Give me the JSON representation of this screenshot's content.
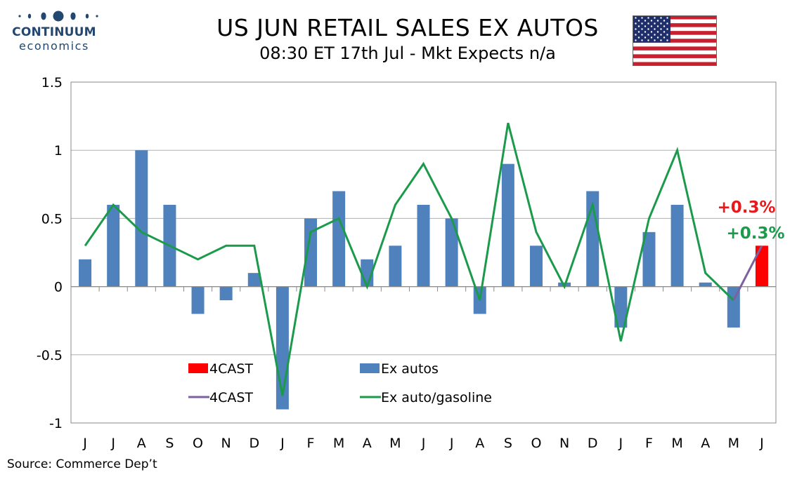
{
  "logo": {
    "name": "CONTINUUM",
    "sub": "economics",
    "color": "#23476e"
  },
  "header": {
    "title": "US JUN RETAIL SALES EX AUTOS",
    "subtitle": "08:30 ET 17th Jul - Mkt Expects n/a"
  },
  "source": "Source: Commerce Dep’t",
  "colors": {
    "bars": "#4f81bd",
    "forecast_bar": "#ff0000",
    "line": "#1a9a4a",
    "forecast_line": "#7d60a0",
    "callout_red": "#e8191b",
    "callout_green": "#1a9a4a"
  },
  "chart_data": {
    "type": "bar",
    "categories": [
      "J",
      "J",
      "A",
      "S",
      "O",
      "N",
      "D",
      "J",
      "F",
      "M",
      "A",
      "M",
      "J",
      "J",
      "A",
      "S",
      "O",
      "N",
      "D",
      "J",
      "F",
      "M",
      "A",
      "M",
      "J"
    ],
    "ylim": [
      -1,
      1.5
    ],
    "yticks": [
      "1.5",
      "1",
      "0.5",
      "0",
      "-0.5",
      "-1"
    ],
    "grid": true,
    "series": [
      {
        "name": "Ex autos",
        "type": "bar",
        "values": [
          0.2,
          0.6,
          1.0,
          0.6,
          -0.2,
          -0.1,
          0.1,
          -0.9,
          0.5,
          0.7,
          0.2,
          0.3,
          0.6,
          0.5,
          -0.2,
          0.9,
          0.3,
          0.03,
          0.7,
          -0.3,
          0.4,
          0.6,
          0.03,
          -0.3,
          null
        ]
      },
      {
        "name": "4CAST",
        "type": "bar",
        "values": [
          null,
          null,
          null,
          null,
          null,
          null,
          null,
          null,
          null,
          null,
          null,
          null,
          null,
          null,
          null,
          null,
          null,
          null,
          null,
          null,
          null,
          null,
          null,
          null,
          0.3
        ]
      },
      {
        "name": "Ex auto/gasoline",
        "type": "line",
        "values": [
          0.3,
          0.6,
          0.4,
          0.3,
          0.2,
          0.3,
          0.3,
          -0.8,
          0.4,
          0.5,
          0.0,
          0.6,
          0.9,
          0.5,
          -0.1,
          1.2,
          0.4,
          0.0,
          0.6,
          -0.4,
          0.5,
          1.0,
          0.1,
          -0.1,
          null
        ]
      },
      {
        "name": "4CAST",
        "type": "line",
        "values": [
          null,
          null,
          null,
          null,
          null,
          null,
          null,
          null,
          null,
          null,
          null,
          null,
          null,
          null,
          null,
          null,
          null,
          null,
          null,
          null,
          null,
          null,
          null,
          -0.1,
          0.3
        ]
      }
    ],
    "legend": {
      "placement": "bottom-left",
      "items": [
        {
          "label": "4CAST",
          "kind": "bar",
          "color": "#ff0000"
        },
        {
          "label": "Ex autos",
          "kind": "bar",
          "color": "#4f81bd"
        },
        {
          "label": "4CAST",
          "kind": "line",
          "color": "#7d60a0"
        },
        {
          "label": "Ex auto/gasoline",
          "kind": "line",
          "color": "#1a9a4a"
        }
      ]
    },
    "annotations": [
      {
        "text": "+0.3%",
        "color": "#e8191b"
      },
      {
        "text": "+0.3%",
        "color": "#1a9a4a"
      }
    ]
  }
}
